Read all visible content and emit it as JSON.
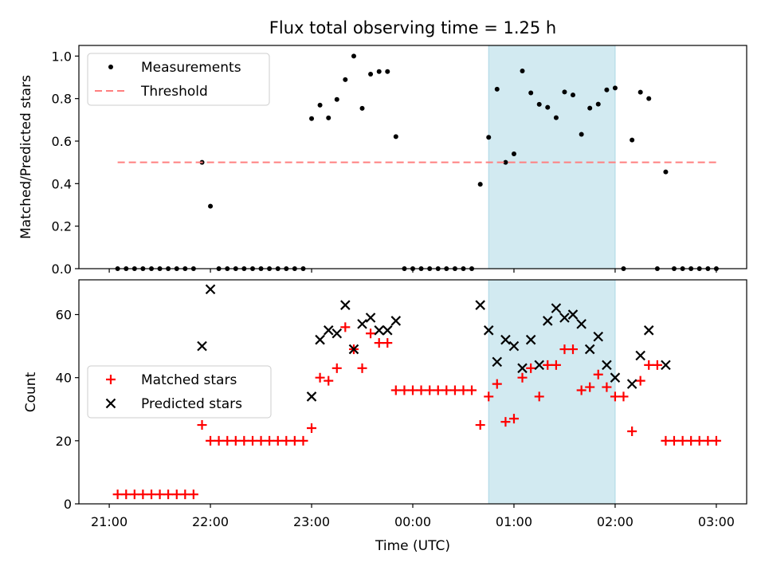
{
  "chart_data": [
    {
      "type": "scatter",
      "title": "Flux total observing time = 1.25 h",
      "xlabel": "",
      "ylabel": "Matched/Predicted stars",
      "x_unit": "hours since 21:00 UTC",
      "xlim": [
        -0.3,
        6.3
      ],
      "ylim": [
        0,
        1.05
      ],
      "yticks": [
        0.0,
        0.2,
        0.4,
        0.6,
        0.8,
        1.0
      ],
      "ytick_labels": [
        "0.0",
        "0.2",
        "0.4",
        "0.6",
        "0.8",
        "1.0"
      ],
      "shaded_region": {
        "x0": 3.75,
        "x1": 5.0,
        "color": "#add8e6"
      },
      "legend_position": "upper left",
      "series": [
        {
          "name": "Measurements",
          "marker": "dot",
          "color": "#000000",
          "points": [
            [
              0.083,
              0
            ],
            [
              0.167,
              0
            ],
            [
              0.25,
              0
            ],
            [
              0.333,
              0
            ],
            [
              0.417,
              0
            ],
            [
              0.5,
              0
            ],
            [
              0.583,
              0
            ],
            [
              0.667,
              0
            ],
            [
              0.75,
              0
            ],
            [
              0.833,
              0
            ],
            [
              0.917,
              0.5
            ],
            [
              1.0,
              0.294
            ],
            [
              1.083,
              0
            ],
            [
              1.167,
              0
            ],
            [
              1.25,
              0
            ],
            [
              1.333,
              0
            ],
            [
              1.417,
              0
            ],
            [
              1.5,
              0
            ],
            [
              1.583,
              0
            ],
            [
              1.667,
              0
            ],
            [
              1.75,
              0
            ],
            [
              1.833,
              0
            ],
            [
              1.917,
              0
            ],
            [
              2.0,
              0.706
            ],
            [
              2.083,
              0.769
            ],
            [
              2.167,
              0.709
            ],
            [
              2.25,
              0.796
            ],
            [
              2.333,
              0.889
            ],
            [
              2.417,
              1.0
            ],
            [
              2.5,
              0.754
            ],
            [
              2.583,
              0.915
            ],
            [
              2.667,
              0.927
            ],
            [
              2.75,
              0.927
            ],
            [
              2.833,
              0.621
            ],
            [
              2.917,
              0
            ],
            [
              3.0,
              0
            ],
            [
              3.083,
              0
            ],
            [
              3.167,
              0
            ],
            [
              3.25,
              0
            ],
            [
              3.333,
              0
            ],
            [
              3.417,
              0
            ],
            [
              3.5,
              0
            ],
            [
              3.583,
              0
            ],
            [
              3.667,
              0.397
            ],
            [
              3.75,
              0.618
            ],
            [
              3.833,
              0.844
            ],
            [
              3.917,
              0.5
            ],
            [
              4.0,
              0.54
            ],
            [
              4.083,
              0.93
            ],
            [
              4.167,
              0.827
            ],
            [
              4.25,
              0.773
            ],
            [
              4.333,
              0.759
            ],
            [
              4.417,
              0.71
            ],
            [
              4.5,
              0.831
            ],
            [
              4.583,
              0.817
            ],
            [
              4.667,
              0.632
            ],
            [
              4.75,
              0.755
            ],
            [
              4.833,
              0.774
            ],
            [
              4.917,
              0.841
            ],
            [
              5.0,
              0.85
            ],
            [
              5.083,
              0
            ],
            [
              5.167,
              0.605
            ],
            [
              5.25,
              0.83
            ],
            [
              5.333,
              0.8
            ],
            [
              5.417,
              0
            ],
            [
              5.5,
              0.455
            ],
            [
              5.583,
              0
            ],
            [
              5.667,
              0
            ],
            [
              5.75,
              0
            ],
            [
              5.833,
              0
            ],
            [
              5.917,
              0
            ],
            [
              6.0,
              0
            ]
          ]
        },
        {
          "name": "Threshold",
          "style": "dashed-line",
          "color": "#ff7f7f",
          "points": [
            [
              0.083,
              0.5
            ],
            [
              6.0,
              0.5
            ]
          ]
        }
      ]
    },
    {
      "type": "scatter",
      "title": "",
      "xlabel": "Time (UTC)",
      "ylabel": "Count",
      "x_unit": "hours since 21:00 UTC",
      "xlim": [
        -0.3,
        6.3
      ],
      "ylim": [
        0,
        71
      ],
      "xticks": [
        0,
        1,
        2,
        3,
        4,
        5,
        6
      ],
      "xtick_labels": [
        "21:00",
        "22:00",
        "23:00",
        "00:00",
        "01:00",
        "02:00",
        "03:00"
      ],
      "yticks": [
        0,
        20,
        40,
        60
      ],
      "ytick_labels": [
        "0",
        "20",
        "40",
        "60"
      ],
      "shaded_region": {
        "x0": 3.75,
        "x1": 5.0,
        "color": "#add8e6"
      },
      "legend_position": "center left",
      "series": [
        {
          "name": "Matched stars",
          "marker": "plus",
          "color": "#ff0000",
          "points": [
            [
              0.083,
              3
            ],
            [
              0.167,
              3
            ],
            [
              0.25,
              3
            ],
            [
              0.333,
              3
            ],
            [
              0.417,
              3
            ],
            [
              0.5,
              3
            ],
            [
              0.583,
              3
            ],
            [
              0.667,
              3
            ],
            [
              0.75,
              3
            ],
            [
              0.833,
              3
            ],
            [
              0.917,
              25
            ],
            [
              1.0,
              20
            ],
            [
              1.083,
              20
            ],
            [
              1.167,
              20
            ],
            [
              1.25,
              20
            ],
            [
              1.333,
              20
            ],
            [
              1.417,
              20
            ],
            [
              1.5,
              20
            ],
            [
              1.583,
              20
            ],
            [
              1.667,
              20
            ],
            [
              1.75,
              20
            ],
            [
              1.833,
              20
            ],
            [
              1.917,
              20
            ],
            [
              2.0,
              24
            ],
            [
              2.083,
              40
            ],
            [
              2.167,
              39
            ],
            [
              2.25,
              43
            ],
            [
              2.333,
              56
            ],
            [
              2.417,
              49
            ],
            [
              2.5,
              43
            ],
            [
              2.583,
              54
            ],
            [
              2.667,
              51
            ],
            [
              2.75,
              51
            ],
            [
              2.833,
              36
            ],
            [
              2.917,
              36
            ],
            [
              3.0,
              36
            ],
            [
              3.083,
              36
            ],
            [
              3.167,
              36
            ],
            [
              3.25,
              36
            ],
            [
              3.333,
              36
            ],
            [
              3.417,
              36
            ],
            [
              3.5,
              36
            ],
            [
              3.583,
              36
            ],
            [
              3.667,
              25
            ],
            [
              3.75,
              34
            ],
            [
              3.833,
              38
            ],
            [
              3.917,
              26
            ],
            [
              4.0,
              27
            ],
            [
              4.083,
              40
            ],
            [
              4.167,
              43
            ],
            [
              4.25,
              34
            ],
            [
              4.333,
              44
            ],
            [
              4.417,
              44
            ],
            [
              4.5,
              49
            ],
            [
              4.583,
              49
            ],
            [
              4.667,
              36
            ],
            [
              4.75,
              37
            ],
            [
              4.833,
              41
            ],
            [
              4.917,
              37
            ],
            [
              5.0,
              34
            ],
            [
              5.083,
              34
            ],
            [
              5.167,
              23
            ],
            [
              5.25,
              39
            ],
            [
              5.333,
              44
            ],
            [
              5.417,
              44
            ],
            [
              5.5,
              20
            ],
            [
              5.583,
              20
            ],
            [
              5.667,
              20
            ],
            [
              5.75,
              20
            ],
            [
              5.833,
              20
            ],
            [
              5.917,
              20
            ],
            [
              6.0,
              20
            ]
          ]
        },
        {
          "name": "Predicted stars",
          "marker": "cross",
          "color": "#000000",
          "points": [
            [
              0.917,
              50
            ],
            [
              1.0,
              68
            ],
            [
              2.0,
              34
            ],
            [
              2.083,
              52
            ],
            [
              2.167,
              55
            ],
            [
              2.25,
              54
            ],
            [
              2.333,
              63
            ],
            [
              2.417,
              49
            ],
            [
              2.5,
              57
            ],
            [
              2.583,
              59
            ],
            [
              2.667,
              55
            ],
            [
              2.75,
              55
            ],
            [
              2.833,
              58
            ],
            [
              3.667,
              63
            ],
            [
              3.75,
              55
            ],
            [
              3.833,
              45
            ],
            [
              3.917,
              52
            ],
            [
              4.0,
              50
            ],
            [
              4.083,
              43
            ],
            [
              4.167,
              52
            ],
            [
              4.25,
              44
            ],
            [
              4.333,
              58
            ],
            [
              4.417,
              62
            ],
            [
              4.5,
              59
            ],
            [
              4.583,
              60
            ],
            [
              4.667,
              57
            ],
            [
              4.75,
              49
            ],
            [
              4.833,
              53
            ],
            [
              4.917,
              44
            ],
            [
              5.0,
              40
            ],
            [
              5.167,
              38
            ],
            [
              5.25,
              47
            ],
            [
              5.333,
              55
            ],
            [
              5.5,
              44
            ]
          ]
        }
      ]
    }
  ]
}
